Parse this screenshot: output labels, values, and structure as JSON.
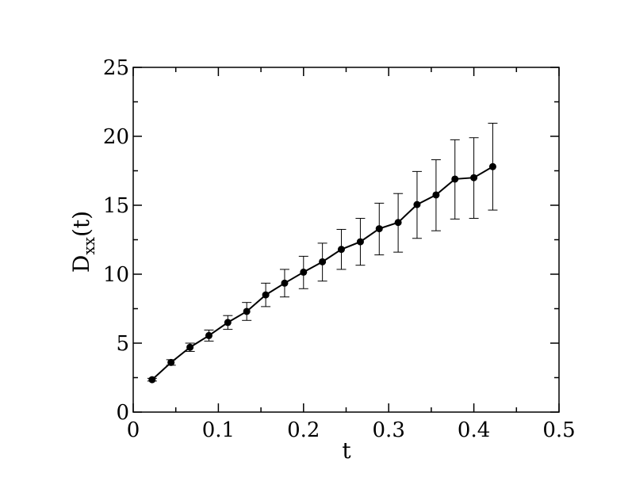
{
  "chart_data": {
    "type": "line",
    "title": "",
    "xlabel": "t",
    "ylabel_main": "D",
    "ylabel_sub": "xx",
    "ylabel_arg": "(t)",
    "xlim": [
      0,
      0.5
    ],
    "ylim": [
      0,
      25
    ],
    "x_ticks": [
      0,
      0.1,
      0.2,
      0.3,
      0.4,
      0.5
    ],
    "x_tick_labels": [
      "0",
      "0.1",
      "0.2",
      "0.3",
      "0.4",
      "0.5"
    ],
    "y_ticks": [
      0,
      5,
      10,
      15,
      20,
      25
    ],
    "y_tick_labels": [
      "0",
      "5",
      "10",
      "15",
      "20",
      "25"
    ],
    "grid": false,
    "legend": "none",
    "line_color": "#000000",
    "series": [
      {
        "x": [
          0.0222,
          0.0444,
          0.0667,
          0.0889,
          0.1111,
          0.1333,
          0.1556,
          0.1778,
          0.2,
          0.2222,
          0.2444,
          0.2667,
          0.2889,
          0.3111,
          0.3333,
          0.3556,
          0.3778,
          0.4,
          0.4222
        ],
        "y": [
          2.35,
          3.6,
          4.7,
          5.55,
          6.5,
          7.3,
          8.5,
          9.35,
          10.15,
          10.9,
          11.8,
          12.35,
          13.3,
          13.75,
          15.05,
          15.75,
          16.9,
          17.0,
          17.8
        ],
        "err_low": [
          2.25,
          3.4,
          4.4,
          5.15,
          6.0,
          6.65,
          7.65,
          8.35,
          8.95,
          9.5,
          10.35,
          10.65,
          11.4,
          11.6,
          12.6,
          13.15,
          14.0,
          14.05,
          14.65
        ],
        "err_high": [
          2.45,
          3.8,
          5.0,
          5.95,
          7.0,
          7.95,
          9.35,
          10.35,
          11.3,
          12.25,
          13.25,
          14.05,
          15.15,
          15.85,
          17.45,
          18.3,
          19.75,
          19.9,
          20.95
        ]
      }
    ]
  }
}
